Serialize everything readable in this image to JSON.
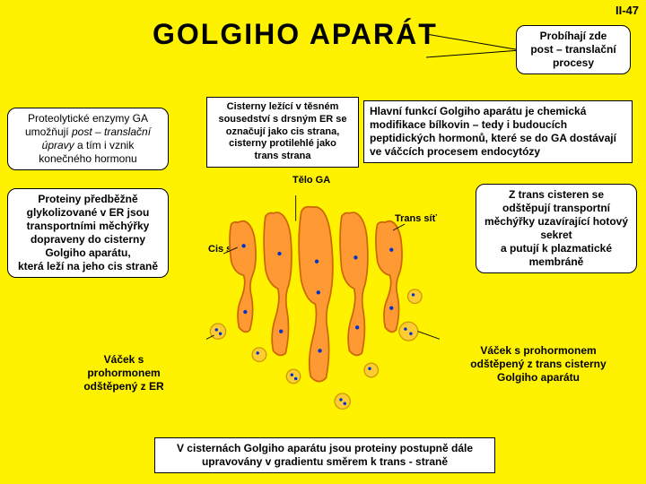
{
  "page_label": "II-47",
  "title": "GOLGIHO  APARÁT",
  "boxes": {
    "post_translation": "Probíhají zde\npost – translační\nprocesy",
    "proteolytic": "Proteolytické enzymy GA umožňují <em>post – translační úpravy</em> a tím i vznik konečného hormonu",
    "proteins_glyco": "Proteiny předběžně glykolizované v ER jsou transportními měchýřky dopraveny do cisterny Golgiho aparátu,\nkterá leží na jeho cis straně",
    "cisterny": "Cisterny ležící v  těsném sousedství s drsným ER se označují jako cis strana, cisterny protilehlé jako\ntrans strana",
    "main_func": "Hlavní funkcí Golgiho aparátu je chemická modifikace bílkovin – tedy i budoucích peptidických hormonů, které se do GA dostávají ve váčcích procesem endocytózy",
    "trans_cistern": "Z trans cisteren se odštěpují transportní měchýřky uzavírající hotový sekret\na putují k plazmatické membráně",
    "vacek_er": "Váček  s prohormonem odštěpený z ER",
    "vacek_trans": "Váček s prohormonem odštěpený z trans cisterny Golgiho aparátu",
    "bottom": "V cisternách Golgiho aparátu jsou proteiny postupně dále upravovány v gradientu směrem k trans - straně"
  },
  "labels": {
    "telo": "Tělo GA",
    "cis": "Cis síť",
    "trans": "Trans  síť"
  },
  "colors": {
    "bg": "#fff200",
    "golgi_fill": "#ff9933",
    "golgi_stroke": "#cc6600",
    "vesicle_fill": "#ffcc33",
    "vesicle_stroke": "#cc9900",
    "dot": "#0033cc"
  }
}
